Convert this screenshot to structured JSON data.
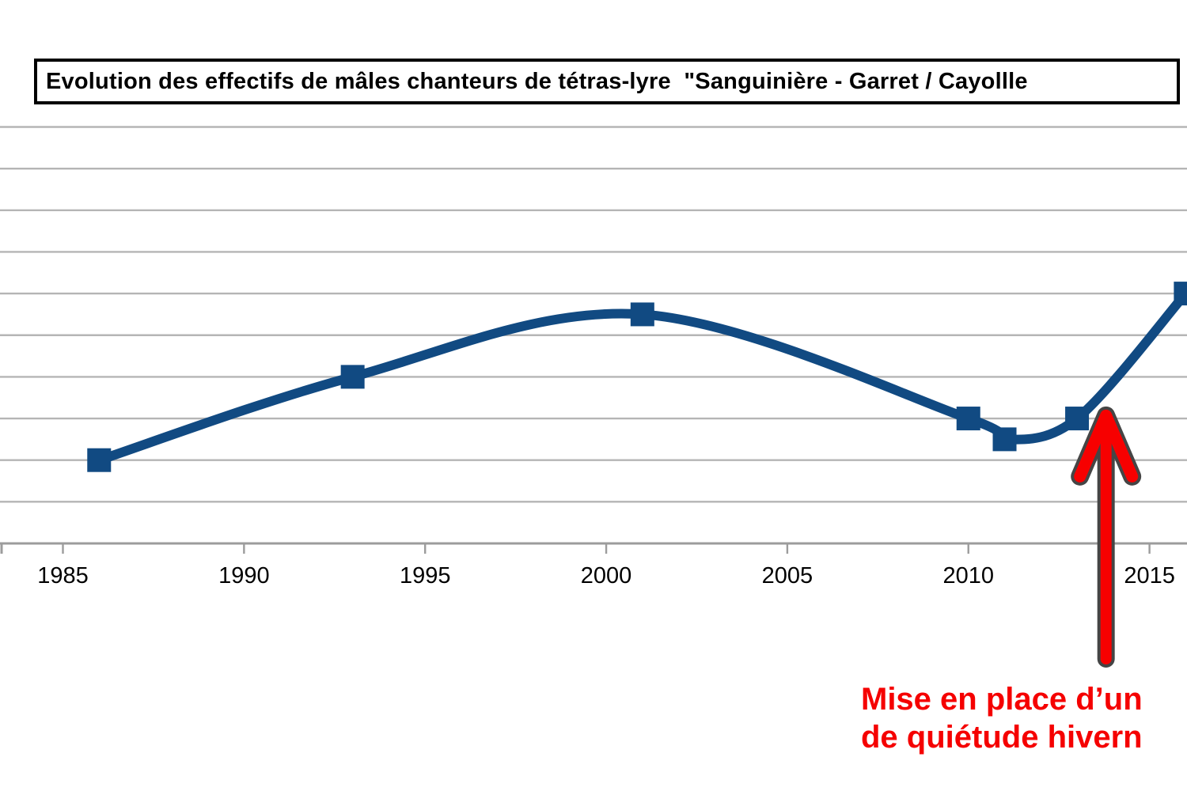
{
  "title_box": {
    "text": "Evolution des effectifs de mâles chanteurs de tétras-lyre  \"Sanguinière - Garret / Cayollle"
  },
  "annotation": {
    "lines": [
      "Mise en place d’un",
      "de quiétude hivern"
    ],
    "color": "#f50000"
  },
  "chart_data": {
    "type": "line",
    "title": "Evolution des effectifs de mâles chanteurs de tétras-lyre \"Sanguinière - Garret / Cayollle",
    "x": [
      1986,
      1993,
      2001,
      2010,
      2011,
      2013,
      2016
    ],
    "series": [
      {
        "name": "mâles chanteurs",
        "values_gridline_units": [
          2,
          4,
          5.5,
          3,
          2.5,
          3,
          6
        ],
        "values_if_each_gridline_is_2": [
          4,
          8,
          11,
          6,
          5,
          6,
          12
        ]
      }
    ],
    "x_ticks": [
      1985,
      1990,
      1995,
      2000,
      2005,
      2010,
      2015
    ],
    "ylabel": "",
    "xlabel": "",
    "y_axis_note": "y-axis tick labels cropped out of screenshot; values given in horizontal-gridline units above the x-axis",
    "y_gridlines_visible": 10,
    "grid": "horizontal",
    "legend": "none",
    "smooth": true,
    "marker": "square",
    "line_color": "#114a82",
    "gridline_color": "#b5b5b5",
    "axis_color": "#9c9c9c",
    "tick_label_color": "#000000",
    "annotation_arrow": {
      "points_to_year": 2013.8,
      "fill": "#f70000",
      "outline": "#454545"
    }
  }
}
